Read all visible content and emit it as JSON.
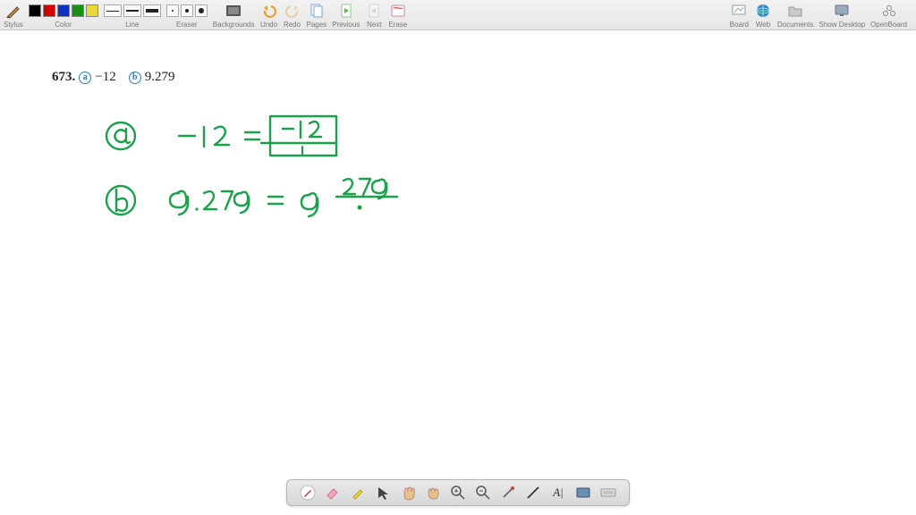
{
  "toolbar": {
    "groups": {
      "stylus": {
        "label": "Stylus"
      },
      "color": {
        "label": "Color",
        "swatches": [
          "#000000",
          "#d40000",
          "#1030c0",
          "#189018",
          "#e8d838"
        ]
      },
      "line": {
        "label": "Line",
        "widths": [
          1,
          2,
          4
        ]
      },
      "eraser": {
        "label": "Eraser",
        "dots": [
          2,
          4,
          6
        ]
      },
      "backgrounds": {
        "label": "Backgrounds"
      },
      "undo": {
        "label": "Undo"
      },
      "redo": {
        "label": "Redo"
      },
      "pages": {
        "label": "Pages"
      },
      "previous": {
        "label": "Previous"
      },
      "next": {
        "label": "Next"
      },
      "erase": {
        "label": "Erase"
      },
      "board": {
        "label": "Board"
      },
      "web": {
        "label": "Web"
      },
      "documents": {
        "label": "Documents"
      },
      "showdesktop": {
        "label": "Show Desktop"
      },
      "openboard": {
        "label": "OpenBoard"
      }
    }
  },
  "problem": {
    "number": "673.",
    "badge_a": "a",
    "value_a": "−12",
    "badge_b": "b",
    "value_b": "9.279",
    "badge_color": "#2b7fb8"
  },
  "handwriting": {
    "stroke": "#19a24a",
    "stroke_width": 2.4,
    "items": {
      "a_label": "a",
      "a_lhs": "−12",
      "a_eq": "=",
      "a_num": "−12",
      "a_den": "1",
      "b_label": "b",
      "b_lhs": "9.279",
      "b_eq": "=",
      "b_whole": "9",
      "b_num": "279"
    }
  },
  "bottom_toolbar": {
    "background": "#dedede",
    "text_tool_label": "A|"
  }
}
